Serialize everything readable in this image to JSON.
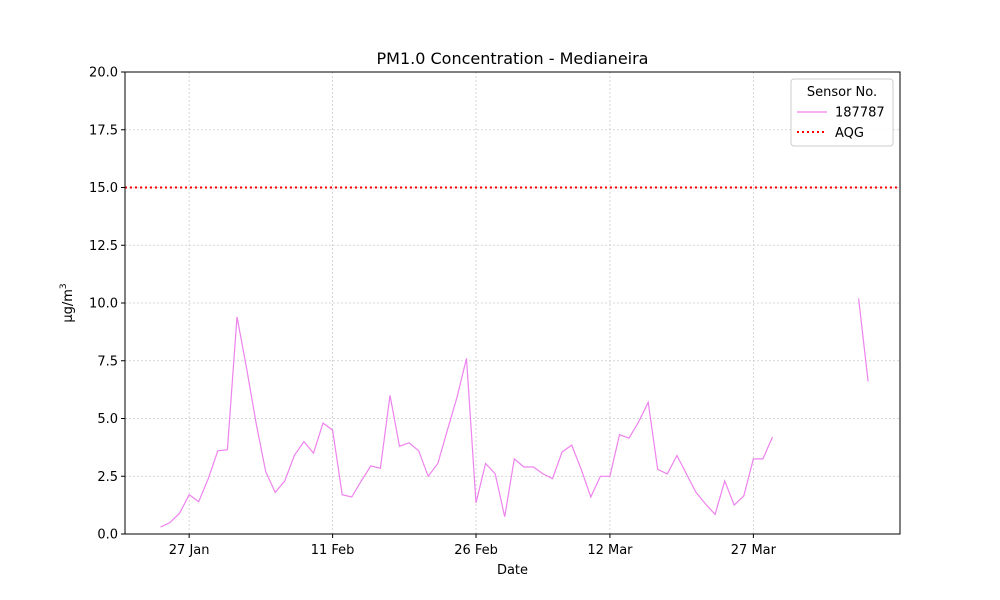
{
  "chart_data": {
    "type": "line",
    "title": "PM1.0 Concentration - Medianeira",
    "xlabel": "Date",
    "ylabel": "μg/m",
    "ylabel_sup": "3",
    "ylim": [
      0,
      20
    ],
    "yticks": [
      0,
      2.5,
      5,
      7.5,
      10,
      12.5,
      15,
      17.5,
      20
    ],
    "ytick_labels": [
      "0.0",
      "2.5",
      "5.0",
      "7.5",
      "10.0",
      "12.5",
      "15.0",
      "17.5",
      "20.0"
    ],
    "xlim": [
      "2025-01-20T07:00",
      "2025-04-11T08:00"
    ],
    "xticks": [
      "2025-01-27",
      "2025-02-11",
      "2025-02-26",
      "2025-03-12",
      "2025-03-27"
    ],
    "xtick_labels": [
      "27 Jan",
      "11 Feb",
      "26 Feb",
      "12 Mar",
      "27 Mar"
    ],
    "grid": true,
    "legend": {
      "title": "Sensor No.",
      "placement": "top-right"
    },
    "series": [
      {
        "name": "187787",
        "color": "#ee82ee",
        "style": "solid",
        "segments": [
          [
            [
              "2025-01-24",
              0.3
            ],
            [
              "2025-01-25",
              0.5
            ],
            [
              "2025-01-26",
              0.9
            ],
            [
              "2025-01-27",
              1.7
            ],
            [
              "2025-01-28",
              1.4
            ],
            [
              "2025-01-29",
              2.4
            ],
            [
              "2025-01-30",
              3.6
            ],
            [
              "2025-01-31",
              3.65
            ],
            [
              "2025-02-01",
              9.4
            ],
            [
              "2025-02-02",
              7.2
            ],
            [
              "2025-02-03",
              4.8
            ],
            [
              "2025-02-04",
              2.7
            ],
            [
              "2025-02-05",
              1.8
            ],
            [
              "2025-02-06",
              2.3
            ],
            [
              "2025-02-07",
              3.4
            ],
            [
              "2025-02-08",
              4.0
            ],
            [
              "2025-02-09",
              3.5
            ],
            [
              "2025-02-10",
              4.8
            ],
            [
              "2025-02-11",
              4.5
            ],
            [
              "2025-02-12",
              1.7
            ],
            [
              "2025-02-13",
              1.6
            ],
            [
              "2025-02-14",
              2.3
            ],
            [
              "2025-02-15",
              2.95
            ],
            [
              "2025-02-16",
              2.85
            ],
            [
              "2025-02-17",
              6.0
            ],
            [
              "2025-02-18",
              3.8
            ],
            [
              "2025-02-19",
              3.95
            ],
            [
              "2025-02-20",
              3.6
            ],
            [
              "2025-02-21",
              2.5
            ],
            [
              "2025-02-22",
              3.05
            ],
            [
              "2025-02-23",
              4.5
            ],
            [
              "2025-02-24",
              5.9
            ],
            [
              "2025-02-25",
              7.6
            ],
            [
              "2025-02-26",
              1.35
            ],
            [
              "2025-02-27",
              3.05
            ],
            [
              "2025-02-28",
              2.6
            ],
            [
              "2025-03-01",
              0.75
            ],
            [
              "2025-03-02",
              3.25
            ],
            [
              "2025-03-03",
              2.9
            ],
            [
              "2025-03-04",
              2.9
            ],
            [
              "2025-03-05",
              2.6
            ],
            [
              "2025-03-06",
              2.4
            ],
            [
              "2025-03-07",
              3.55
            ],
            [
              "2025-03-08",
              3.85
            ],
            [
              "2025-03-09",
              2.8
            ],
            [
              "2025-03-10",
              1.6
            ],
            [
              "2025-03-11",
              2.5
            ],
            [
              "2025-03-12",
              2.5
            ],
            [
              "2025-03-13",
              4.3
            ],
            [
              "2025-03-14",
              4.15
            ],
            [
              "2025-03-15",
              4.85
            ],
            [
              "2025-03-16",
              5.7
            ],
            [
              "2025-03-17",
              2.8
            ],
            [
              "2025-03-18",
              2.6
            ],
            [
              "2025-03-19",
              3.4
            ],
            [
              "2025-03-20",
              2.6
            ],
            [
              "2025-03-21",
              1.8
            ],
            [
              "2025-03-22",
              1.3
            ],
            [
              "2025-03-23",
              0.85
            ],
            [
              "2025-03-24",
              2.3
            ],
            [
              "2025-03-25",
              1.25
            ],
            [
              "2025-03-26",
              1.65
            ],
            [
              "2025-03-27",
              3.25
            ],
            [
              "2025-03-28",
              3.25
            ],
            [
              "2025-03-29",
              4.2
            ]
          ],
          [
            [
              "2025-04-07",
              10.2
            ],
            [
              "2025-04-08",
              6.6
            ]
          ]
        ]
      },
      {
        "name": "AQG",
        "color": "#ff0000",
        "style": "dotted",
        "value": 15
      }
    ]
  }
}
